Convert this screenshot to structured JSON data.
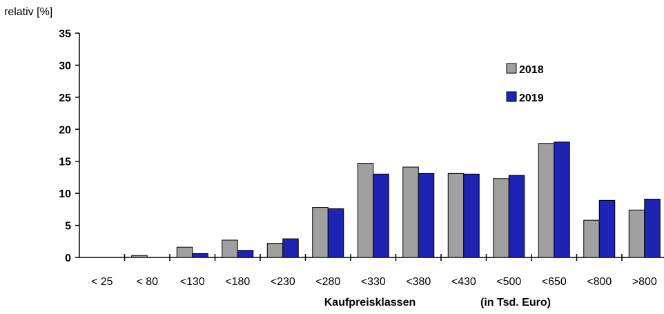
{
  "chart_data": {
    "type": "bar",
    "ylabel": "relativ [%]",
    "xlabel": "Kaufpreisklassen",
    "xlabel_unit": "(in Tsd. Euro)",
    "ylim": [
      0,
      35
    ],
    "yticks": [
      0,
      5,
      10,
      15,
      20,
      25,
      30,
      35
    ],
    "categories": [
      "< 25",
      "< 80",
      "<130",
      "<180",
      "<230",
      "<280",
      "<330",
      "<380",
      "<430",
      "<500",
      "<650",
      "<800",
      ">800"
    ],
    "series": [
      {
        "name": "2018",
        "color": "#a0a0a0",
        "values": [
          0.0,
          0.3,
          1.6,
          2.7,
          2.2,
          7.8,
          14.7,
          14.1,
          13.1,
          12.3,
          17.8,
          5.8,
          7.4
        ]
      },
      {
        "name": "2019",
        "color": "#1f23b4",
        "values": [
          0.0,
          0.0,
          0.6,
          1.1,
          2.9,
          7.6,
          13.0,
          13.1,
          13.0,
          12.8,
          18.0,
          8.9,
          9.1
        ]
      }
    ],
    "grid": false,
    "legend_position": "top-right"
  }
}
